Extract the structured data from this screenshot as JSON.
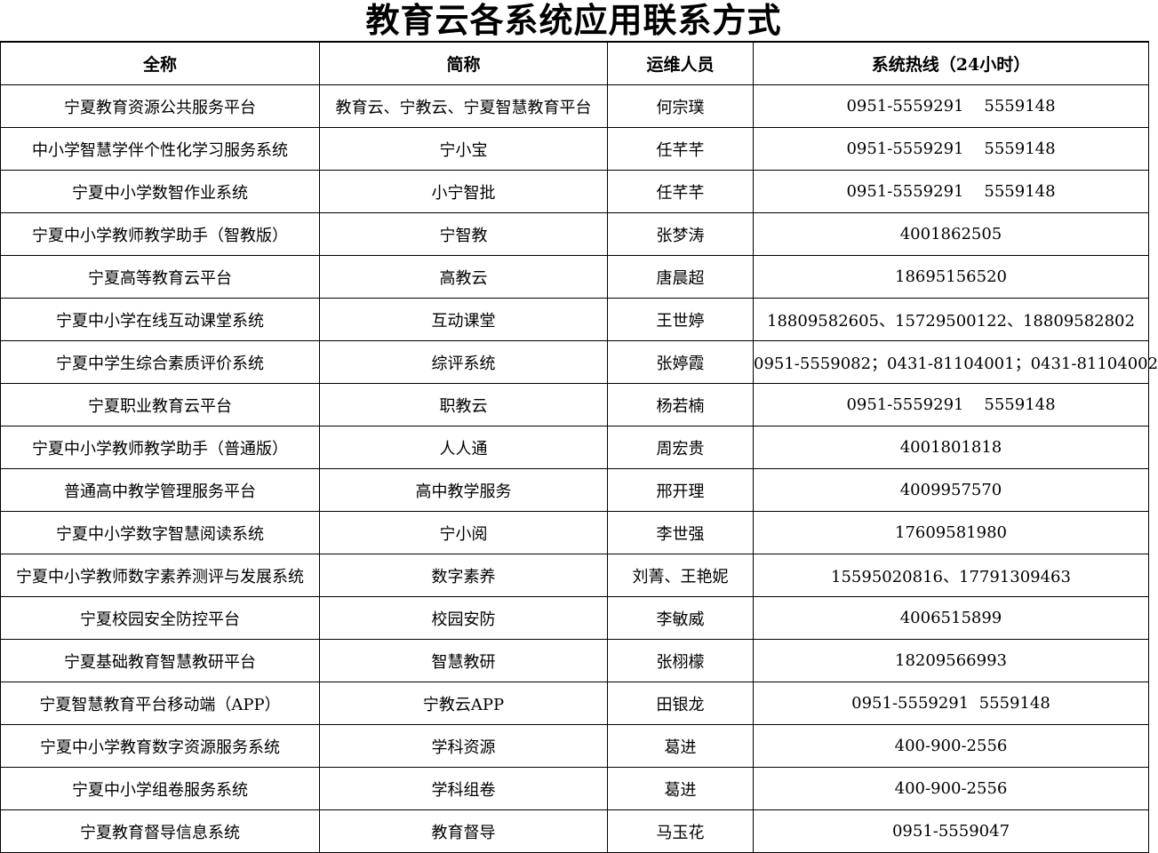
{
  "title": "教育云各系统应用联系方式",
  "headers": [
    "全称",
    "简称",
    "运维人员",
    "系统热线（24小时）"
  ],
  "rows": [
    [
      "宁夏教育资源公共服务平台",
      "教育云、宁教云、宁夏智慧教育平台",
      "何宗璞",
      "0951-5559291    5559148"
    ],
    [
      "中小学智慧学伴个性化学习服务系统",
      "宁小宝",
      "任芊芊",
      "0951-5559291    5559148"
    ],
    [
      "宁夏中小学数智作业系统",
      "小宁智批",
      "任芊芊",
      "0951-5559291    5559148"
    ],
    [
      "宁夏中小学教师教学助手（智教版）",
      "宁智教",
      "张梦涛",
      "4001862505"
    ],
    [
      "宁夏高等教育云平台",
      "高教云",
      "唐晨超",
      "18695156520"
    ],
    [
      "宁夏中小学在线互动课堂系统",
      "互动课堂",
      "王世婷",
      "18809582605、15729500122、18809582802"
    ],
    [
      "宁夏中学生综合素质评价系统",
      "综评系统",
      "张婷霞",
      "0951-5559082；0431-81104001；0431-81104002"
    ],
    [
      "宁夏职业教育云平台",
      "职教云",
      "杨若楠",
      "0951-5559291    5559148"
    ],
    [
      "宁夏中小学教师教学助手（普通版）",
      "人人通",
      "周宏贵",
      "4001801818"
    ],
    [
      "普通高中教学管理服务平台",
      "高中教学服务",
      "邢开理",
      "4009957570"
    ],
    [
      "宁夏中小学数字智慧阅读系统",
      "宁小阅",
      "李世强",
      "17609581980"
    ],
    [
      "宁夏中小学教师数字素养测评与发展系统",
      "数字素养",
      "刘菁、王艳妮",
      "15595020816、17791309463"
    ],
    [
      "宁夏校园安全防控平台",
      "校园安防",
      "李敏威",
      "4006515899"
    ],
    [
      "宁夏基础教育智慧教研平台",
      "智慧教研",
      "张栩檬",
      "18209566993"
    ],
    [
      "宁夏智慧教育平台移动端（APP）",
      "宁教云APP",
      "田银龙",
      "0951-5559291  5559148"
    ],
    [
      "宁夏中小学教育数字资源服务系统",
      "学科资源",
      "葛进",
      "400-900-2556"
    ],
    [
      "宁夏中小学组卷服务系统",
      "学科组卷",
      "葛进",
      "400-900-2556"
    ],
    [
      "宁夏教育督导信息系统",
      "教育督导",
      "马玉花",
      "0951-5559047"
    ]
  ]
}
